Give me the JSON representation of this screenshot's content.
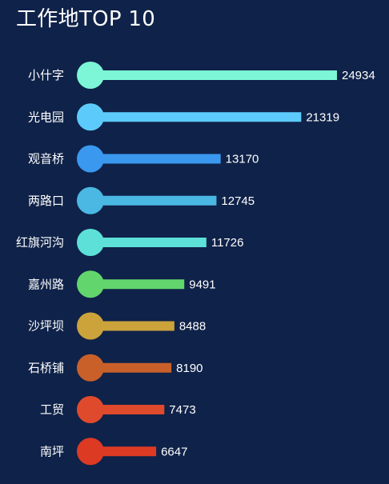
{
  "chart_data": {
    "type": "bar",
    "orientation": "horizontal",
    "title": "工作地TOP 10",
    "categories": [
      "小什字",
      "光电园",
      "观音桥",
      "两路口",
      "红旗河沟",
      "嘉州路",
      "沙坪坝",
      "石桥铺",
      "工贸",
      "南坪"
    ],
    "values": [
      24934,
      21319,
      13170,
      12745,
      11726,
      9491,
      8488,
      8190,
      7473,
      6647
    ],
    "colors": [
      "#7cf6d6",
      "#5ccbfb",
      "#3a98ef",
      "#4ab8e3",
      "#5de0d8",
      "#62d66d",
      "#cba33a",
      "#c9602a",
      "#e04a2c",
      "#dd3a24"
    ],
    "xlim": [
      0,
      24934
    ],
    "background": "#0f2249",
    "grid": false,
    "legend": false
  }
}
